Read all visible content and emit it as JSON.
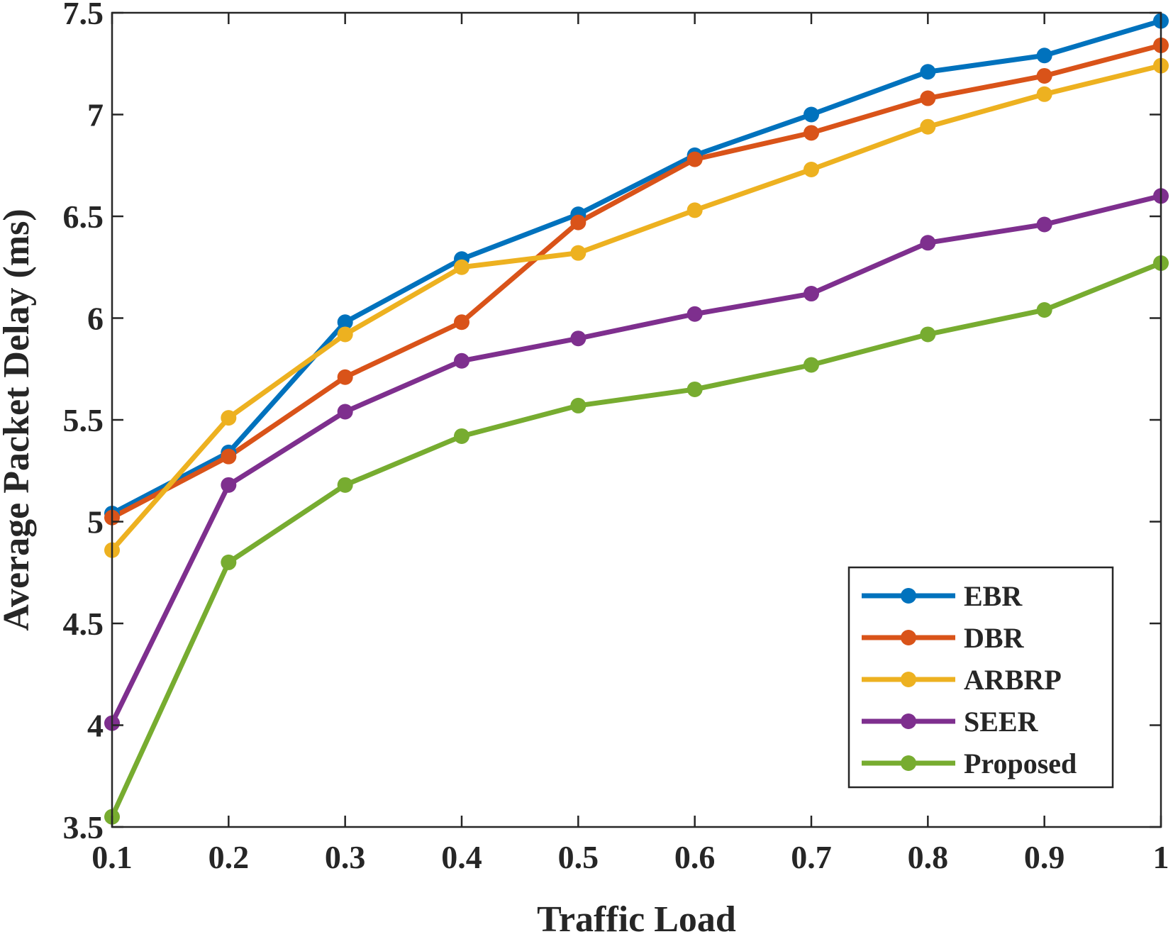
{
  "chart_data": {
    "type": "line",
    "title": "",
    "xlabel": "Traffic Load",
    "ylabel": "Average Packet Delay (ms)",
    "x": [
      0.1,
      0.2,
      0.3,
      0.4,
      0.5,
      0.6,
      0.7,
      0.8,
      0.9,
      1.0
    ],
    "xlim": [
      0.1,
      1.0
    ],
    "ylim": [
      3.5,
      7.5
    ],
    "x_tick_values": [
      0.1,
      0.2,
      0.3,
      0.4,
      0.5,
      0.6,
      0.7,
      0.8,
      0.9,
      1.0
    ],
    "x_tick_labels": [
      "0.1",
      "0.2",
      "0.3",
      "0.4",
      "0.5",
      "0.6",
      "0.7",
      "0.8",
      "0.9",
      "1"
    ],
    "y_tick_values": [
      3.5,
      4,
      4.5,
      5,
      5.5,
      6,
      6.5,
      7,
      7.5
    ],
    "y_tick_labels": [
      "3.5",
      "4",
      "4.5",
      "5",
      "5.5",
      "6",
      "6.5",
      "7",
      "7.5"
    ],
    "grid": false,
    "legend_position": "bottom-right",
    "series": [
      {
        "name": "EBR",
        "color": "#0072BD",
        "values": [
          5.04,
          5.34,
          5.98,
          6.29,
          6.51,
          6.8,
          7.0,
          7.21,
          7.29,
          7.46
        ]
      },
      {
        "name": "DBR",
        "color": "#D95319",
        "values": [
          5.02,
          5.32,
          5.71,
          5.98,
          6.47,
          6.78,
          6.91,
          7.08,
          7.19,
          7.34
        ]
      },
      {
        "name": "ARBRP",
        "color": "#EDB120",
        "values": [
          4.86,
          5.51,
          5.92,
          6.25,
          6.32,
          6.53,
          6.73,
          6.94,
          7.1,
          7.24
        ]
      },
      {
        "name": "SEER",
        "color": "#7E2F8E",
        "values": [
          4.01,
          5.18,
          5.54,
          5.79,
          5.9,
          6.02,
          6.12,
          6.37,
          6.46,
          6.6
        ]
      },
      {
        "name": "Proposed",
        "color": "#77AC30",
        "values": [
          3.55,
          4.8,
          5.18,
          5.42,
          5.57,
          5.65,
          5.77,
          5.92,
          6.04,
          6.27
        ]
      }
    ]
  }
}
